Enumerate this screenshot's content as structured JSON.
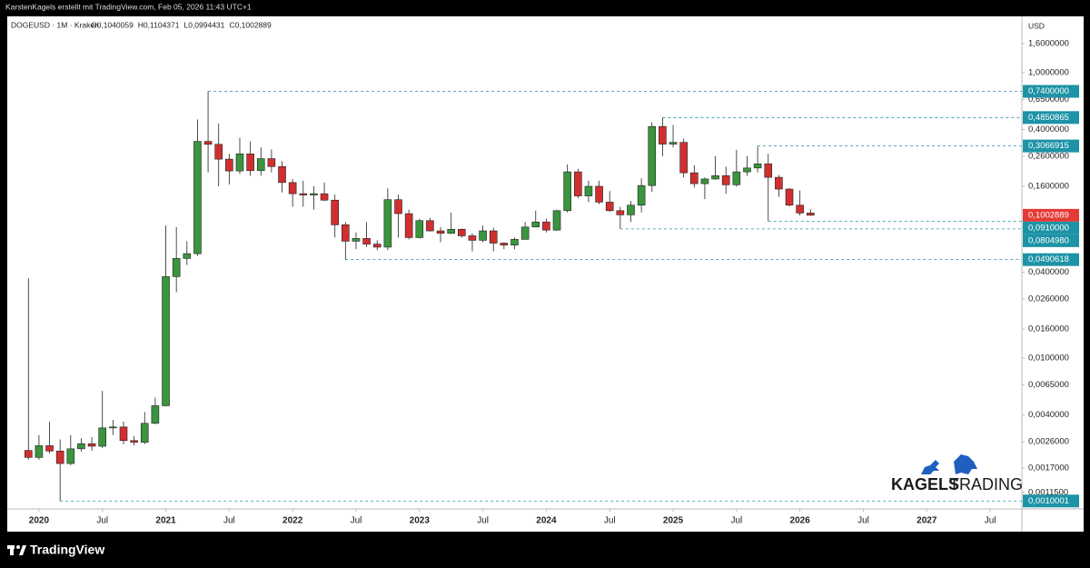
{
  "chart_data": {
    "type": "candlestick",
    "header": "KarstenKagels erstellt mit TradingView.com, Feb 05, 2026 11:43 UTC+1",
    "symbol": "DOGEUSD · 1M · Kraken",
    "ohlc": [
      "O0,1040059",
      "H0,1104371",
      "L0,0994431",
      "C0,1002889"
    ],
    "currency": "USD",
    "watermark": [
      "KAGELS",
      "TRADING"
    ],
    "footer": "TradingView",
    "log_scale": true,
    "up_color": "#3b943e",
    "down_color": "#d12f2f",
    "x": [
      "2019-12",
      "2020-01",
      "2020-02",
      "2020-03",
      "2020-04",
      "2020-05",
      "2020-06",
      "2020-07",
      "2020-08",
      "2020-09",
      "2020-10",
      "2020-11",
      "2020-12",
      "2021-01",
      "2021-02",
      "2021-03",
      "2021-04",
      "2021-05",
      "2021-06",
      "2021-07",
      "2021-08",
      "2021-09",
      "2021-10",
      "2021-11",
      "2021-12",
      "2022-01",
      "2022-02",
      "2022-03",
      "2022-04",
      "2022-05",
      "2022-06",
      "2022-07",
      "2022-08",
      "2022-09",
      "2022-10",
      "2022-11",
      "2022-12",
      "2023-01",
      "2023-02",
      "2023-03",
      "2023-04",
      "2023-05",
      "2023-06",
      "2023-07",
      "2023-08",
      "2023-09",
      "2023-10",
      "2023-11",
      "2023-12",
      "2024-01",
      "2024-02",
      "2024-03",
      "2024-04",
      "2024-05",
      "2024-06",
      "2024-07",
      "2024-08",
      "2024-09",
      "2024-10",
      "2024-11",
      "2024-12",
      "2025-01",
      "2025-02",
      "2025-03",
      "2025-04",
      "2025-05",
      "2025-06",
      "2025-07",
      "2025-08",
      "2025-09",
      "2025-10",
      "2025-11",
      "2025-12",
      "2026-01",
      "2026-02"
    ],
    "open": [
      0.00226,
      0.00202,
      0.00244,
      0.00224,
      0.00183,
      0.00232,
      0.00252,
      0.00242,
      0.00325,
      0.0033,
      0.00265,
      0.00258,
      0.0035,
      0.00465,
      0.0373,
      0.05,
      0.054,
      0.33,
      0.315,
      0.248,
      0.205,
      0.27,
      0.206,
      0.25,
      0.22,
      0.17,
      0.142,
      0.139,
      0.142,
      0.128,
      0.086,
      0.066,
      0.069,
      0.063,
      0.06,
      0.129,
      0.103,
      0.07,
      0.092,
      0.078,
      0.075,
      0.08,
      0.072,
      0.067,
      0.078,
      0.064,
      0.062,
      0.068,
      0.083,
      0.09,
      0.079,
      0.108,
      0.202,
      0.137,
      0.16,
      0.124,
      0.108,
      0.101,
      0.118,
      0.162,
      0.42,
      0.316,
      0.325,
      0.199,
      0.167,
      0.18,
      0.19,
      0.164,
      0.202,
      0.215,
      0.23,
      0.185,
      0.153,
      0.118,
      0.1040059
    ],
    "high": [
      0.0363,
      0.0029,
      0.0036,
      0.0027,
      0.0029,
      0.00275,
      0.0028,
      0.0059,
      0.0037,
      0.0036,
      0.00285,
      0.0042,
      0.0053,
      0.085,
      0.083,
      0.066,
      0.47,
      0.74,
      0.44,
      0.27,
      0.35,
      0.33,
      0.3,
      0.29,
      0.24,
      0.18,
      0.175,
      0.16,
      0.17,
      0.14,
      0.09,
      0.076,
      0.09,
      0.067,
      0.155,
      0.14,
      0.11,
      0.095,
      0.096,
      0.083,
      0.105,
      0.081,
      0.075,
      0.085,
      0.082,
      0.065,
      0.07,
      0.09,
      0.108,
      0.095,
      0.11,
      0.228,
      0.212,
      0.175,
      0.175,
      0.148,
      0.115,
      0.126,
      0.182,
      0.45,
      0.4850865,
      0.43,
      0.345,
      0.225,
      0.185,
      0.26,
      0.22,
      0.288,
      0.26,
      0.3066915,
      0.27,
      0.192,
      0.155,
      0.15,
      0.1104371
    ],
    "low": [
      0.00195,
      0.00195,
      0.00215,
      0.0010001,
      0.00178,
      0.00222,
      0.00225,
      0.00235,
      0.0029,
      0.0025,
      0.00245,
      0.0025,
      0.00345,
      0.0046,
      0.029,
      0.045,
      0.052,
      0.2,
      0.16,
      0.165,
      0.195,
      0.19,
      0.19,
      0.2,
      0.145,
      0.115,
      0.115,
      0.11,
      0.126,
      0.07,
      0.0490618,
      0.058,
      0.06,
      0.057,
      0.057,
      0.07,
      0.068,
      0.069,
      0.077,
      0.065,
      0.074,
      0.07,
      0.056,
      0.065,
      0.056,
      0.058,
      0.058,
      0.068,
      0.083,
      0.076,
      0.078,
      0.105,
      0.132,
      0.124,
      0.12,
      0.106,
      0.080498,
      0.09,
      0.105,
      0.146,
      0.26,
      0.3,
      0.185,
      0.157,
      0.13,
      0.178,
      0.142,
      0.159,
      0.189,
      0.2,
      0.091,
      0.135,
      0.116,
      0.1,
      0.0994431
    ],
    "close": [
      0.00202,
      0.00244,
      0.00224,
      0.00183,
      0.00232,
      0.00252,
      0.00242,
      0.00325,
      0.0033,
      0.00265,
      0.00258,
      0.0035,
      0.00465,
      0.0373,
      0.05,
      0.054,
      0.33,
      0.315,
      0.248,
      0.205,
      0.27,
      0.206,
      0.25,
      0.22,
      0.17,
      0.142,
      0.139,
      0.142,
      0.128,
      0.086,
      0.066,
      0.069,
      0.063,
      0.06,
      0.129,
      0.103,
      0.07,
      0.092,
      0.078,
      0.075,
      0.08,
      0.072,
      0.067,
      0.078,
      0.064,
      0.062,
      0.068,
      0.083,
      0.09,
      0.079,
      0.108,
      0.202,
      0.137,
      0.16,
      0.124,
      0.108,
      0.101,
      0.118,
      0.162,
      0.42,
      0.316,
      0.325,
      0.199,
      0.167,
      0.18,
      0.19,
      0.164,
      0.202,
      0.215,
      0.23,
      0.185,
      0.153,
      0.118,
      0.1040059,
      0.1002889
    ],
    "xlim": [
      "2019-10",
      "2027-10"
    ],
    "xticks": [
      {
        "value": "2020-01",
        "label": "2020"
      },
      {
        "value": "2020-07",
        "label": "Jul"
      },
      {
        "value": "2021-01",
        "label": "2021"
      },
      {
        "value": "2021-07",
        "label": "Jul"
      },
      {
        "value": "2022-01",
        "label": "2022"
      },
      {
        "value": "2022-07",
        "label": "Jul"
      },
      {
        "value": "2023-01",
        "label": "2023"
      },
      {
        "value": "2023-07",
        "label": "Jul"
      },
      {
        "value": "2024-01",
        "label": "2024"
      },
      {
        "value": "2024-07",
        "label": "Jul"
      },
      {
        "value": "2025-01",
        "label": "2025"
      },
      {
        "value": "2025-07",
        "label": "Jul"
      },
      {
        "value": "2026-01",
        "label": "2026"
      },
      {
        "value": "2026-07",
        "label": "Jul"
      },
      {
        "value": "2027-01",
        "label": "2027"
      },
      {
        "value": "2027-07",
        "label": "Jul"
      }
    ],
    "ylim": [
      0.00088,
      2.48
    ],
    "yticks": [
      {
        "value": 1.6,
        "label": "1,6000000"
      },
      {
        "value": 1,
        "label": "1,0000000"
      },
      {
        "value": 0.65,
        "label": "0,6500000"
      },
      {
        "value": 0.4,
        "label": "0,4000000"
      },
      {
        "value": 0.26,
        "label": "0,2600000"
      },
      {
        "value": 0.16,
        "label": "0,1600000"
      },
      {
        "value": 0.04,
        "label": "0,0400000"
      },
      {
        "value": 0.026,
        "label": "0,0260000"
      },
      {
        "value": 0.016,
        "label": "0,0160000"
      },
      {
        "value": 0.01,
        "label": "0,0100000"
      },
      {
        "value": 0.0065,
        "label": "0,0065000"
      },
      {
        "value": 0.004,
        "label": "0,0040000"
      },
      {
        "value": 0.0026,
        "label": "0,0026000"
      },
      {
        "value": 0.0017,
        "label": "0,0017000"
      },
      {
        "value": 0.00115,
        "label": "0,0011500"
      }
    ],
    "levels": [
      {
        "value": 0.74,
        "label": "0,7400000",
        "from": "2021-05",
        "color": "#1e93a6"
      },
      {
        "value": 0.4850865,
        "label": "0,4850865",
        "from": "2024-12",
        "color": "#1e93a6"
      },
      {
        "value": 0.3066915,
        "label": "0,3066915",
        "from": "2025-09",
        "color": "#1e93a6"
      },
      {
        "value": 0.1002889,
        "label": "0,1002889",
        "color": "#e53935"
      },
      {
        "value": 0.091,
        "label": "0,0910000",
        "from": "2025-10",
        "color": "#1e93a6"
      },
      {
        "value": 0.080498,
        "label": "0,0804980",
        "from": "2024-08",
        "color": "#1e93a6"
      },
      {
        "value": 0.0490618,
        "label": "0,0490618",
        "from": "2022-06",
        "color": "#1e93a6"
      },
      {
        "value": 0.0010001,
        "label": "0,0010001",
        "from": "2020-03",
        "color": "#1e93a6"
      }
    ]
  }
}
